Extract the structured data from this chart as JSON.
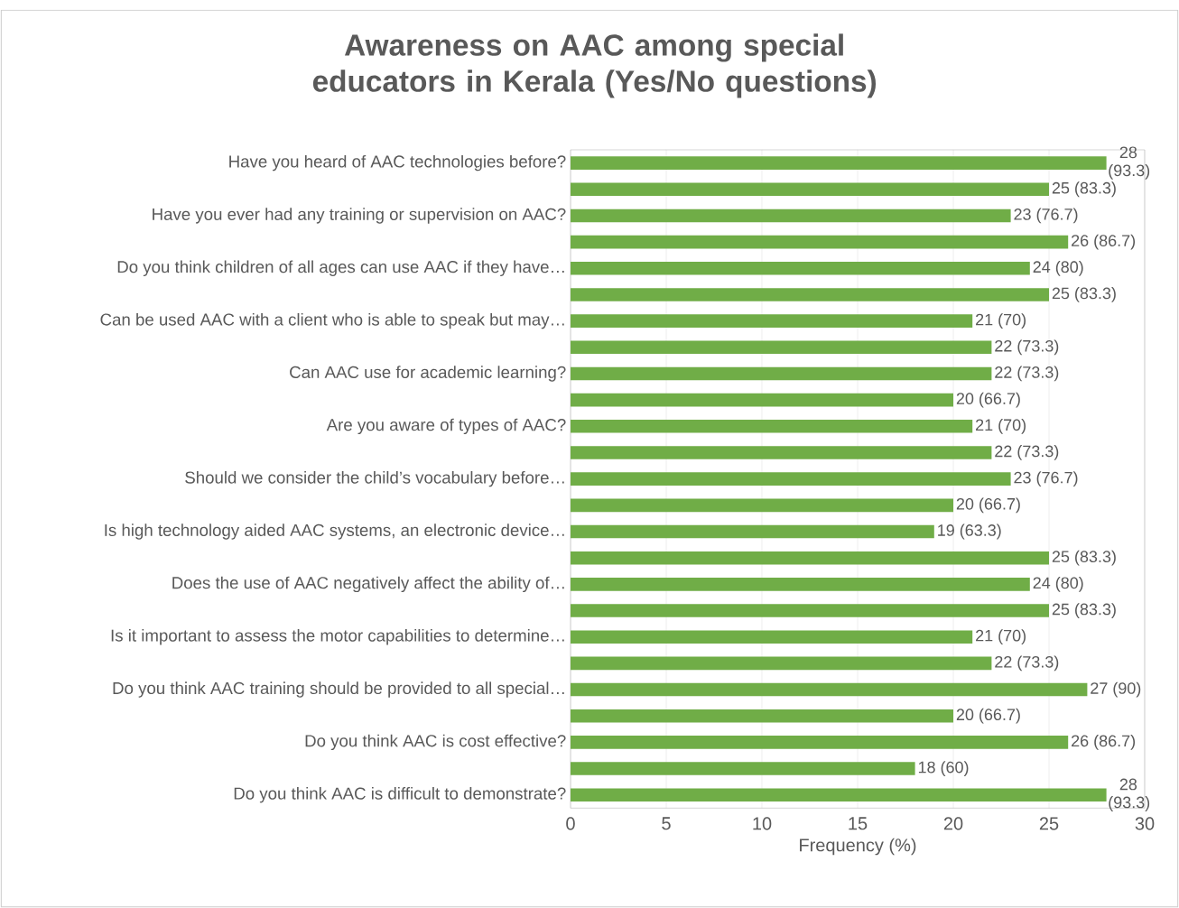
{
  "chart_data": {
    "type": "bar",
    "orientation": "horizontal",
    "title": "Awareness on AAC among special educators in Kerala (Yes/No questions)",
    "xlabel": "Frequency (%)",
    "categories": [
      "Have you heard of AAC technologies before?",
      null,
      "Have you ever had any training or supervision on AAC?",
      null,
      "Do you think children of all ages can use AAC if they have…",
      null,
      "Can be used AAC with a client who is able to speak but may…",
      null,
      "Can AAC use for academic learning?",
      null,
      "Are you aware of types of AAC?",
      null,
      "Should we consider the child’s vocabulary before…",
      null,
      "Is high technology aided AAC systems, an electronic device…",
      null,
      "Does the use of AAC negatively affect the ability of…",
      null,
      "Is it important to assess the motor capabilities to determine…",
      null,
      "Do you think AAC training should be provided to all special…",
      null,
      "Do you think AAC is cost effective?",
      null,
      "Do you think AAC is difficult to demonstrate?"
    ],
    "values": [
      28,
      25,
      23,
      26,
      24,
      25,
      21,
      22,
      22,
      20,
      21,
      22,
      23,
      20,
      19,
      25,
      24,
      25,
      21,
      22,
      27,
      20,
      26,
      18,
      28
    ],
    "value_labels": [
      "28 (93.3)",
      "25 (83.3)",
      "23 (76.7)",
      "26 (86.7)",
      "24 (80)",
      "25 (83.3)",
      "21 (70)",
      "22 (73.3)",
      "22 (73.3)",
      "20 (66.7)",
      "21 (70)",
      "22 (73.3)",
      "23 (76.7)",
      "20 (66.7)",
      "19 (63.3)",
      "25 (83.3)",
      "24 (80)",
      "25 (83.3)",
      "21 (70)",
      "22 (73.3)",
      "27 (90)",
      "20 (66.7)",
      "26 (86.7)",
      "18 (60)",
      "28 (93.3)"
    ],
    "color": "#70ad47",
    "xlim": [
      0,
      30
    ],
    "xticks": [
      0,
      5,
      10,
      15,
      20,
      25,
      30
    ],
    "grid": "x"
  }
}
